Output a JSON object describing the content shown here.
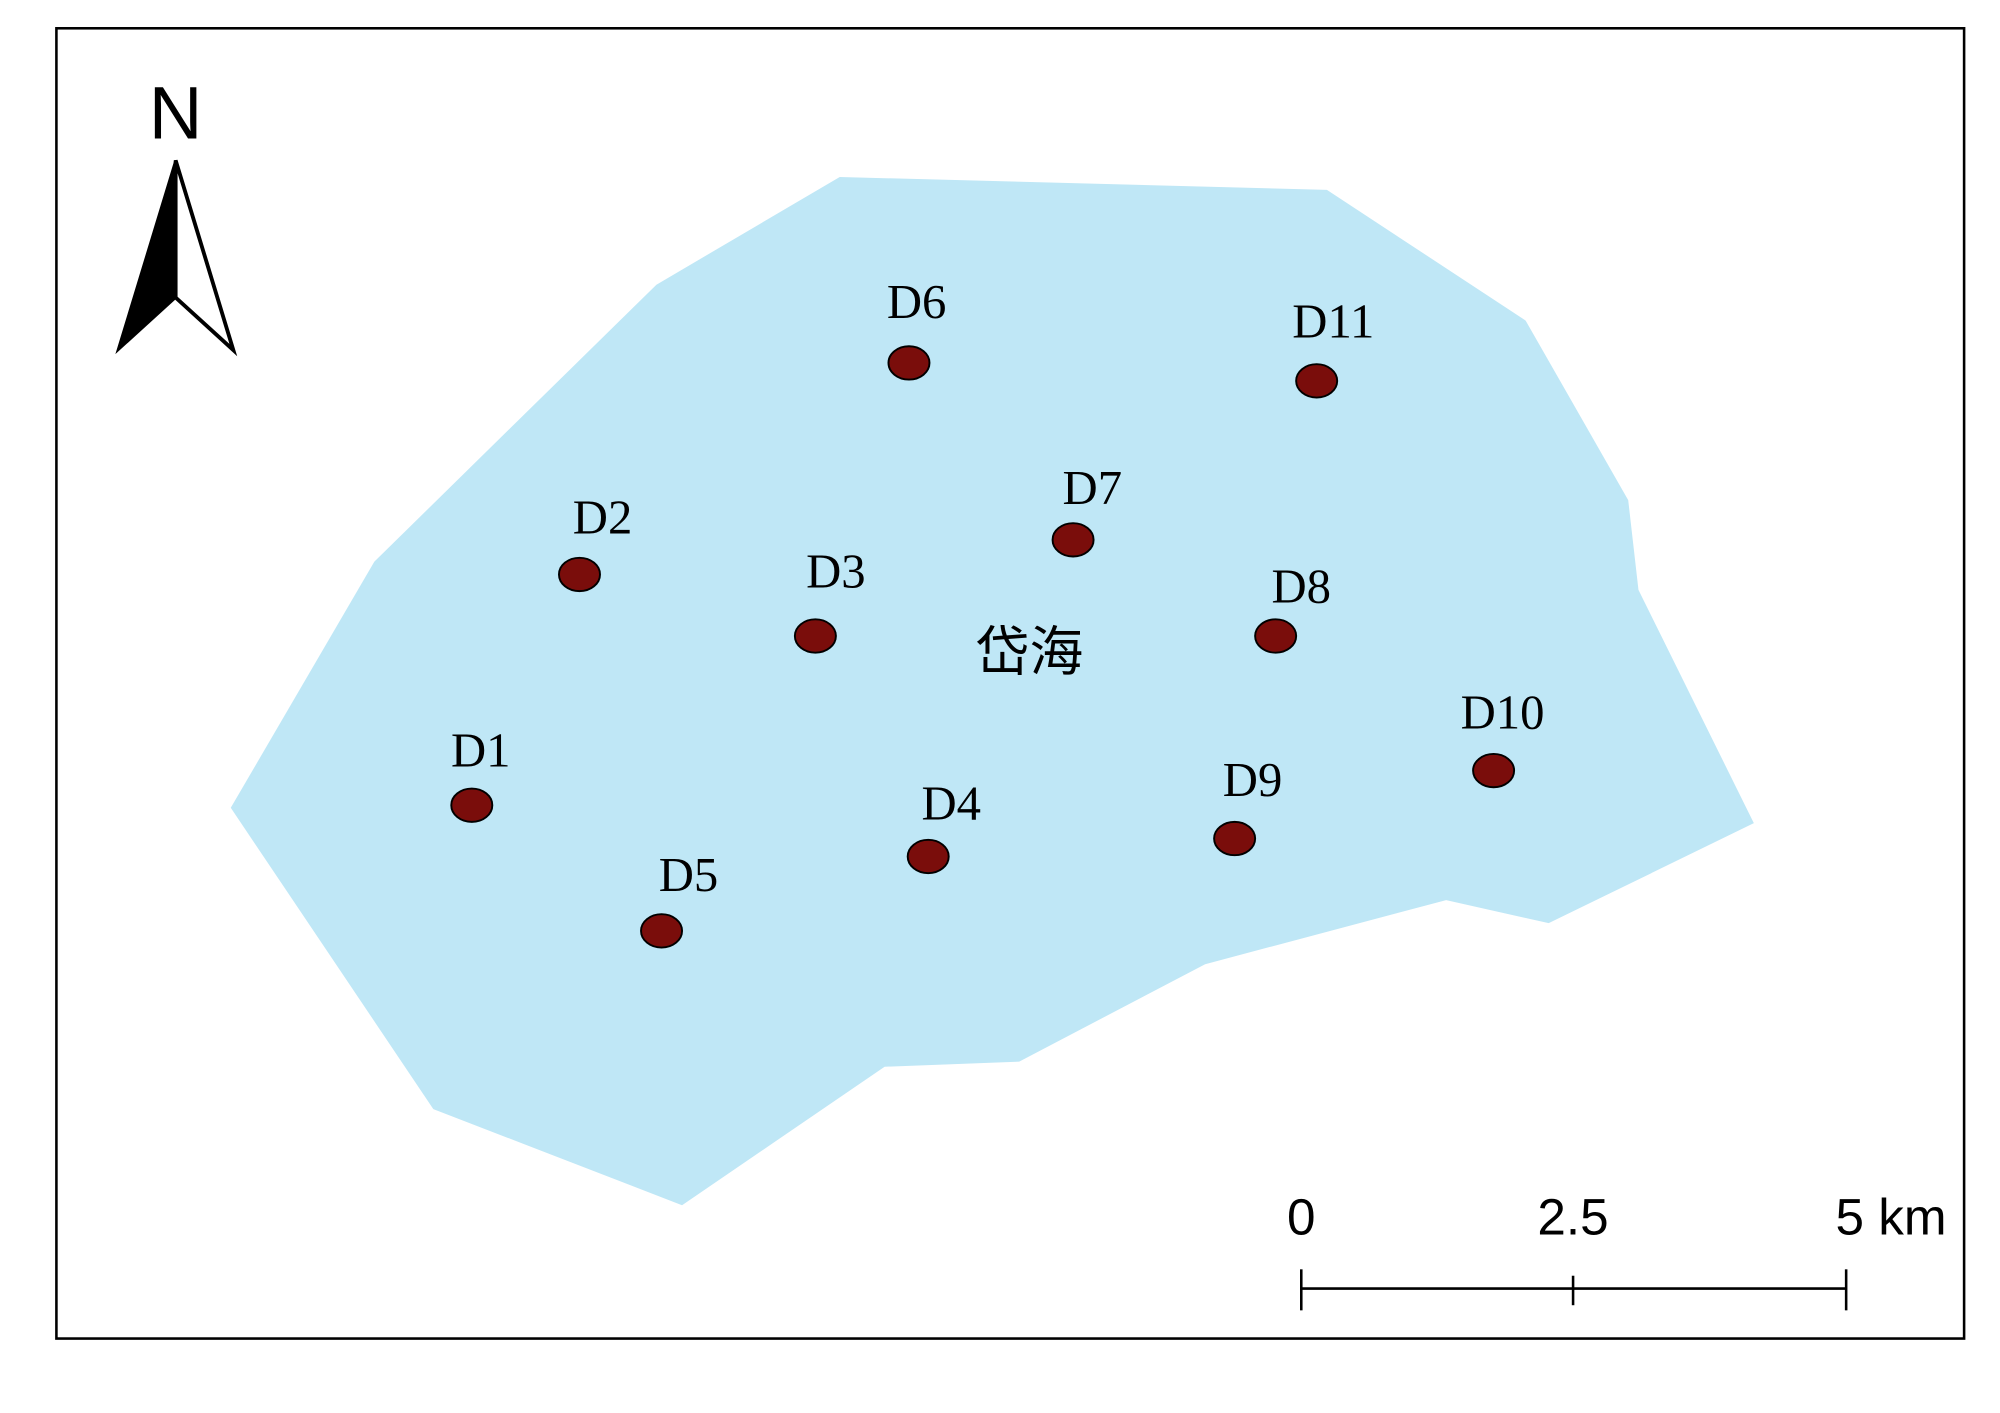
{
  "north": "N",
  "lake_name": "岱海",
  "sites": [
    "D1",
    "D2",
    "D3",
    "D4",
    "D5",
    "D6",
    "D7",
    "D8",
    "D9",
    "D10",
    "D11"
  ],
  "scale_bar": [
    "0",
    "2.5",
    "5 km"
  ]
}
